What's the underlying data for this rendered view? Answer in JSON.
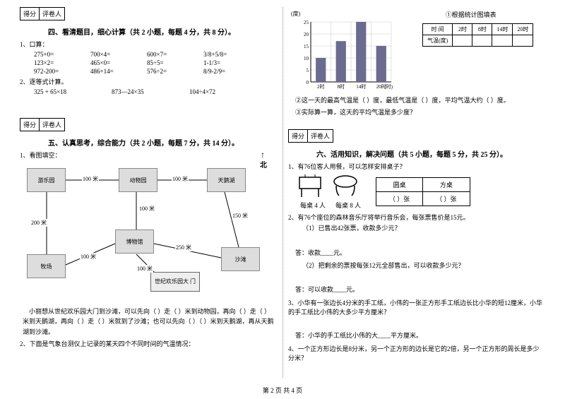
{
  "scoreBox": {
    "c1": "得分",
    "c2": "评卷人"
  },
  "s4": {
    "title": "四、看清题目，细心计算（共 2 小题，每题 4 分，共 8 分）。",
    "q1": "1、口算：",
    "q2": "2、逐等式计算。",
    "r1": [
      "275+0=",
      "700×4=",
      "600×7=",
      "3/8+5/8="
    ],
    "r2": [
      "123×2=",
      "465×0=",
      "85÷5=",
      "1-1/3="
    ],
    "r3": [
      "972-200=",
      "486+14=",
      "576÷2=",
      "8/9-2/9="
    ],
    "r4": [
      "325 + 65×18",
      "873—24×35",
      "104÷4×72"
    ]
  },
  "s5": {
    "title": "五、认真思考，综合能力（共 2 小题，每题 7 分，共 14 分）。",
    "q1": "1、看图填空：",
    "nodes": {
      "n1": "游乐园",
      "n2": "动物园",
      "n3": "天鹅湖",
      "n4": "牧场",
      "n5": "博物馆",
      "n6": "沙滩"
    },
    "gate": "世纪欢乐园大 门",
    "dist": {
      "d1": "100 米",
      "d2": "100 米",
      "d3": "100 米",
      "d4": "200 米",
      "d5": "150 米",
      "d6": "250 米",
      "d7": "100 米",
      "d8": "100 米"
    },
    "north": "北",
    "para": "小丽想从世纪欢乐园大门到沙滩，可以先向（        ）走（        ）米到动物园，再向（        ）走（        ）米到天鹅湖，再向（        ）走（        ）米就到了沙滩；也可以先向（        ）（        ）米到天鹅湖，再从天鹅湖到沙滩。",
    "q2": "2、下面是气象台测仪上记录的某天四个不同时间的气温情况："
  },
  "chart": {
    "unit": "(度)",
    "xunit": "(时)",
    "title": "①根据统计图填表",
    "ylabels": [
      "25",
      "20",
      "15",
      "10",
      "5",
      "0"
    ],
    "xlabels": [
      "2时",
      "8时",
      "14时",
      "20时"
    ],
    "values": [
      10,
      17,
      25,
      15
    ],
    "ymax": 25,
    "barColor": "#6b6b8f",
    "gridColor": "#c8c8c8",
    "axisColor": "#000"
  },
  "fillTable": {
    "h1": "时 间",
    "h2": "气温(度)",
    "cols": [
      "2时",
      "8时",
      "14时",
      "20时"
    ]
  },
  "chartQ": {
    "q2": "②这一天的最高气温是（        ）度，最低气温是（        ）度，平均气温大约（        ）度。",
    "q3": "③实际算一算，这天的平均气温是多少度？"
  },
  "s6": {
    "title": "六、活用知识，解决问题（共 5 小题，每题 5 分，共 25 分）。",
    "q1": "1、有76位客人用餐，可以怎样安排桌子？",
    "cap1": "每桌 4 人",
    "cap2": "每桌 8 人",
    "th1": "圆桌",
    "th2": "方桌",
    "cell": "（        ）张",
    "q2": "2、有76个座位的森林音乐厅将举行音乐会，每张票售价是15元。",
    "q2a": "（1）已售出42张票，收款多少元？",
    "a2a": "答：收款____元。",
    "q2b": "（2）把剩余的票按每张12元全部售出，可以收款多少元？",
    "a2b": "答：可以收款____元。",
    "q3": "3、小华有一张边长4分米的手工纸，小伟的一张正方形手工纸边长比小华的短12厘米，小华的手工纸比小伟的大多少平方厘米？",
    "a3": "答：小华的手工纸比小伟的大____平方厘米。",
    "q4": "4、一个正方形边长是8分米，另一个正方形的边长是它的2倍，另一个正方形的周长是多少分米？"
  },
  "footer": "第 2 页 共 4 页"
}
